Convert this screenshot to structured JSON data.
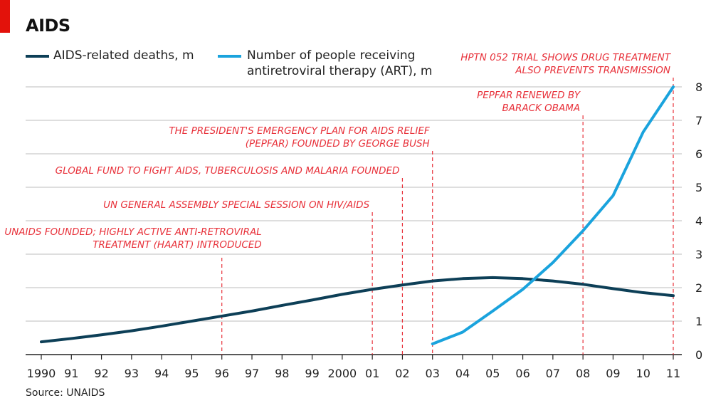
{
  "title": "AIDS",
  "source": "Source: UNAIDS",
  "colors": {
    "deaths": "#0d3f57",
    "art": "#1aa3dd",
    "annotation": "#e8323b",
    "grid": "#c9c9c9",
    "axis": "#222222",
    "brand_tab": "#e3120b"
  },
  "legend": [
    {
      "label_line1": "AIDS-related deaths, m",
      "label_line2": ""
    },
    {
      "label_line1": "Number of people receiving",
      "label_line2": "antiretroviral therapy (ART), m"
    }
  ],
  "annotations": [
    {
      "year": 1996,
      "lines": [
        "UNAIDS FOUNDED; HIGHLY ACTIVE ANTI-RETROVIRAL",
        "TREATMENT (HAART) INTRODUCED"
      ]
    },
    {
      "year": 2001,
      "lines": [
        "UN GENERAL ASSEMBLY SPECIAL SESSION ON HIV/AIDS"
      ]
    },
    {
      "year": 2002,
      "lines": [
        "GLOBAL FUND TO FIGHT AIDS, TUBERCULOSIS AND MALARIA FOUNDED"
      ]
    },
    {
      "year": 2003,
      "lines": [
        "THE PRESIDENT'S EMERGENCY PLAN FOR AIDS RELIEF",
        "(PEPFAR) FOUNDED BY GEORGE BUSH"
      ]
    },
    {
      "year": 2008,
      "lines": [
        "PEPFAR RENEWED BY",
        "BARACK OBAMA"
      ]
    },
    {
      "year": 2011,
      "lines": [
        "HPTN 052 TRIAL SHOWS DRUG TREATMENT",
        "ALSO PREVENTS TRANSMISSION"
      ]
    }
  ],
  "chart_data": {
    "type": "line",
    "x": [
      1990,
      1991,
      1992,
      1993,
      1994,
      1995,
      1996,
      1997,
      1998,
      1999,
      2000,
      2001,
      2002,
      2003,
      2004,
      2005,
      2006,
      2007,
      2008,
      2009,
      2010,
      2011
    ],
    "x_tick_labels": [
      "1990",
      "91",
      "92",
      "93",
      "94",
      "95",
      "96",
      "97",
      "98",
      "99",
      "2000",
      "01",
      "02",
      "03",
      "04",
      "05",
      "06",
      "07",
      "08",
      "09",
      "10",
      "11"
    ],
    "series": [
      {
        "name": "AIDS-related deaths, m",
        "color": "#0d3f57",
        "x": [
          1990,
          1991,
          1992,
          1993,
          1994,
          1995,
          1996,
          1997,
          1998,
          1999,
          2000,
          2001,
          2002,
          2003,
          2004,
          2005,
          2006,
          2007,
          2008,
          2009,
          2010,
          2011
        ],
        "values": [
          0.38,
          0.48,
          0.59,
          0.71,
          0.85,
          1.0,
          1.15,
          1.3,
          1.47,
          1.63,
          1.8,
          1.95,
          2.08,
          2.2,
          2.27,
          2.3,
          2.27,
          2.2,
          2.1,
          1.97,
          1.85,
          1.76
        ]
      },
      {
        "name": "Number of people receiving antiretroviral therapy (ART), m",
        "color": "#1aa3dd",
        "x": [
          2003,
          2004,
          2005,
          2006,
          2007,
          2008,
          2009,
          2010,
          2011
        ],
        "values": [
          0.32,
          0.67,
          1.3,
          1.95,
          2.75,
          3.7,
          4.75,
          6.65,
          8.0
        ]
      }
    ],
    "ylim": [
      0,
      8
    ],
    "y_ticks": [
      0,
      1,
      2,
      3,
      4,
      5,
      6,
      7,
      8
    ],
    "y_axis_side": "right",
    "grid": true,
    "legend_placement": "top-left"
  }
}
